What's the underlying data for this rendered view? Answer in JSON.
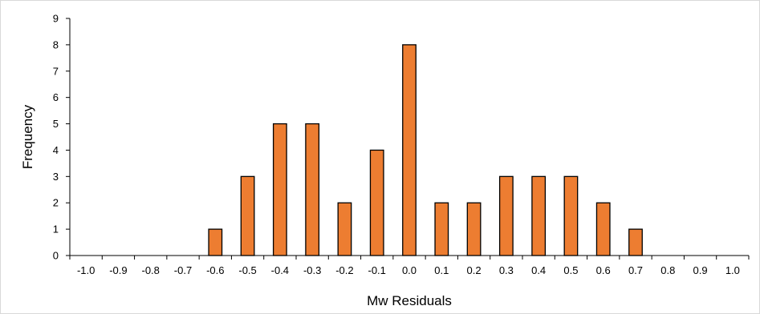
{
  "chart_data": {
    "type": "bar",
    "title": "",
    "xlabel": "Mw Residuals",
    "ylabel": "Frequency",
    "categories": [
      "-1.0",
      "-0.9",
      "-0.8",
      "-0.7",
      "-0.6",
      "-0.5",
      "-0.4",
      "-0.3",
      "-0.2",
      "-0.1",
      "0.0",
      "0.1",
      "0.2",
      "0.3",
      "0.4",
      "0.5",
      "0.6",
      "0.7",
      "0.8",
      "0.9",
      "1.0"
    ],
    "values": [
      0,
      0,
      0,
      0,
      1,
      3,
      5,
      5,
      2,
      4,
      8,
      2,
      2,
      3,
      3,
      3,
      2,
      1,
      0,
      0,
      0
    ],
    "ylim": [
      0,
      9
    ],
    "yticks": [
      "0",
      "1",
      "2",
      "3",
      "4",
      "5",
      "6",
      "7",
      "8",
      "9"
    ],
    "grid": false,
    "legend": "none",
    "colors": {
      "bar": "#ED7D31",
      "bar_stroke": "#000000",
      "axis": "#000000",
      "frame": "#d9d9d9"
    }
  }
}
